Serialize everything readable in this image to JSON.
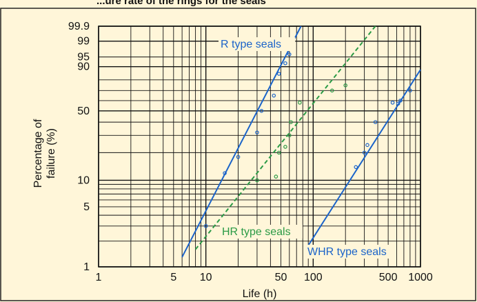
{
  "chart_data": {
    "type": "line",
    "title": "",
    "title_partial": "...ure rate of the rings for the seals",
    "xlabel": "Life (h)",
    "ylabel": "Percentage of\nfailure (%)",
    "x_scale": "log",
    "y_scale": "weibull",
    "xlim": [
      1,
      1000
    ],
    "ylim": [
      1,
      99.9
    ],
    "grid": true,
    "x_ticks": [
      1,
      5,
      10,
      50,
      100,
      500,
      1000
    ],
    "x_tick_labels": [
      "1",
      "5",
      "10",
      "50",
      "100",
      "500",
      "1000"
    ],
    "y_ticks": [
      1,
      5,
      10,
      50,
      90,
      95,
      99,
      99.9
    ],
    "y_tick_labels": [
      "1",
      "5",
      "10",
      "50",
      "90",
      "95",
      "99",
      "99.9"
    ],
    "series": [
      {
        "name": "R type seals",
        "color": "#1a63c9",
        "line_style": "solid",
        "fit_line": [
          [
            6,
            1.3
          ],
          [
            77,
            99.9
          ]
        ],
        "points": [
          [
            10,
            3
          ],
          [
            15,
            12
          ],
          [
            20,
            18
          ],
          [
            30,
            32
          ],
          [
            33,
            50
          ],
          [
            43,
            65
          ],
          [
            48,
            85
          ],
          [
            55,
            92
          ],
          [
            60,
            96
          ]
        ]
      },
      {
        "name": "HR type seals",
        "color": "#2a9a45",
        "line_style": "dashed",
        "fit_line": [
          [
            8,
            1.6
          ],
          [
            380,
            99.9
          ]
        ],
        "points": [
          [
            30,
            10
          ],
          [
            45,
            11
          ],
          [
            48,
            20
          ],
          [
            55,
            23
          ],
          [
            60,
            30
          ],
          [
            62,
            40
          ],
          [
            75,
            58
          ],
          [
            150,
            70
          ],
          [
            200,
            75
          ]
        ]
      },
      {
        "name": "WHR type seals",
        "color": "#1a63c9",
        "line_style": "solid",
        "fit_line": [
          [
            88,
            1.7
          ],
          [
            1000,
            88
          ]
        ],
        "points": [
          [
            250,
            14
          ],
          [
            300,
            20
          ],
          [
            320,
            24
          ],
          [
            380,
            40
          ],
          [
            550,
            58
          ],
          [
            620,
            57
          ],
          [
            650,
            60
          ],
          [
            800,
            70
          ]
        ]
      }
    ]
  },
  "colors": {
    "background": "#fff6d9",
    "frame": "#222222",
    "grid": "#111111",
    "text": "#111111"
  }
}
